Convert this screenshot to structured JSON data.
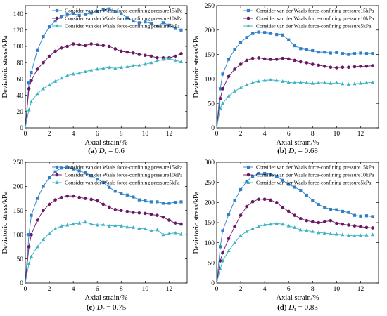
{
  "colors": {
    "p15": "#2f80c8",
    "p10": "#6a1766",
    "p5": "#3ab3c2"
  },
  "chart_data": [
    {
      "type": "line",
      "caption": {
        "letter": "(a)",
        "var": "D",
        "sub": "r",
        "value": " = 0.6"
      },
      "xlabel": "Axial strain/%",
      "ylabel": "Deviatoric stress/kPa",
      "xlim": [
        0,
        13.5
      ],
      "ylim": [
        0,
        150
      ],
      "xticks": [
        0,
        2,
        4,
        6,
        8,
        10,
        12
      ],
      "yticks": [
        0,
        20,
        40,
        60,
        80,
        100,
        120,
        140
      ],
      "legend_position": "top-right",
      "series": [
        {
          "name": "Consider van der Waals force-confining pressure15kPa",
          "marker": "square",
          "color": "#2f80c8",
          "x": [
            0,
            0.3,
            0.5,
            1,
            1.5,
            2,
            2.5,
            3,
            3.5,
            4,
            4.5,
            5,
            5.5,
            6,
            6.5,
            7,
            7.5,
            8,
            8.5,
            9,
            9.5,
            10,
            10.5,
            11,
            11.5,
            12,
            12.5,
            13
          ],
          "y": [
            0,
            55,
            68,
            95,
            112,
            124,
            131,
            137,
            139,
            140,
            138,
            139,
            141,
            143,
            145,
            146,
            143,
            140,
            135,
            131,
            129,
            130,
            128,
            125,
            129,
            126,
            122,
            120
          ]
        },
        {
          "name": "Consider van der Waals force-confining pressure10kPa",
          "marker": "circle",
          "color": "#6a1766",
          "x": [
            0,
            0.3,
            0.5,
            1,
            1.5,
            2,
            2.5,
            3,
            3.5,
            4,
            4.5,
            5,
            5.5,
            6,
            6.5,
            7,
            7.5,
            8,
            8.5,
            9,
            9.5,
            10,
            10.5,
            11,
            11.5,
            12,
            12.5,
            13
          ],
          "y": [
            0,
            48,
            58,
            72,
            80,
            88,
            94,
            98,
            100,
            103,
            102,
            101,
            103,
            102,
            101,
            100,
            97,
            94,
            93,
            92,
            90,
            89,
            88,
            86,
            86,
            86,
            88,
            91
          ]
        },
        {
          "name": "Consider van der Waals force-confining pressure5kPa",
          "marker": "triangle",
          "color": "#3ab3c2",
          "x": [
            0,
            0.3,
            0.5,
            1,
            1.5,
            2,
            2.5,
            3,
            3.5,
            4,
            4.5,
            5,
            5.5,
            6,
            6.5,
            7,
            7.5,
            8,
            8.5,
            9,
            9.5,
            10,
            10.5,
            11,
            11.5,
            12,
            12.5,
            13
          ],
          "y": [
            0,
            22,
            32,
            42,
            48,
            53,
            57,
            61,
            64,
            66,
            67,
            69,
            71,
            72,
            73,
            74,
            73,
            74,
            75,
            76,
            77,
            78,
            80,
            82,
            84,
            85,
            83,
            81
          ]
        }
      ]
    },
    {
      "type": "line",
      "caption": {
        "letter": "(b)",
        "var": "D",
        "sub": "r",
        "value": " = 0.68"
      },
      "xlabel": "Axial strain/%",
      "ylabel": "Deviatoric stress/kPa",
      "xlim": [
        0,
        13.5
      ],
      "ylim": [
        0,
        250
      ],
      "xticks": [
        0,
        2,
        4,
        6,
        8,
        10,
        12
      ],
      "yticks": [
        0,
        50,
        100,
        150,
        200,
        250
      ],
      "legend_position": "top-right",
      "series": [
        {
          "name": "Consider van der Waals force-confining pressure15kPa",
          "marker": "square",
          "color": "#2f80c8",
          "x": [
            0,
            0.3,
            0.5,
            1,
            1.5,
            2,
            2.5,
            3,
            3.5,
            4,
            4.5,
            5,
            5.5,
            6,
            6.5,
            7,
            7.5,
            8,
            8.5,
            9,
            9.5,
            10,
            10.5,
            11,
            11.5,
            12,
            12.5,
            13
          ],
          "y": [
            0,
            80,
            110,
            140,
            160,
            175,
            185,
            193,
            196,
            195,
            193,
            191,
            190,
            180,
            168,
            162,
            160,
            158,
            155,
            155,
            153,
            154,
            152,
            150,
            152,
            153,
            152,
            152
          ]
        },
        {
          "name": "Consider van der Waals force-confining pressure10kPa",
          "marker": "circle",
          "color": "#6a1766",
          "x": [
            0,
            0.3,
            0.5,
            1,
            1.5,
            2,
            2.5,
            3,
            3.5,
            4,
            4.5,
            5,
            5.5,
            6,
            6.5,
            7,
            7.5,
            8,
            8.5,
            9,
            9.5,
            10,
            10.5,
            11,
            11.5,
            12,
            12.5,
            13
          ],
          "y": [
            0,
            60,
            80,
            105,
            120,
            130,
            138,
            142,
            143,
            141,
            140,
            140,
            142,
            141,
            138,
            135,
            133,
            130,
            128,
            126,
            124,
            123,
            124,
            124,
            125,
            126,
            126,
            127
          ]
        },
        {
          "name": "Consider van der Waals force-confining pressure5kPa",
          "marker": "triangle",
          "color": "#3ab3c2",
          "x": [
            0,
            0.3,
            0.5,
            1,
            1.5,
            2,
            2.5,
            3,
            3.5,
            4,
            4.5,
            5,
            5.5,
            6,
            6.5,
            7,
            7.5,
            8,
            8.5,
            9,
            9.5,
            10,
            10.5,
            11,
            11.5,
            12,
            12.5,
            13
          ],
          "y": [
            0,
            40,
            50,
            65,
            75,
            82,
            88,
            92,
            95,
            97,
            98,
            97,
            95,
            93,
            92,
            93,
            92,
            91,
            92,
            92,
            91,
            92,
            90,
            89,
            90,
            91,
            92,
            93
          ]
        }
      ]
    },
    {
      "type": "line",
      "caption": {
        "letter": "(c)",
        "var": "D",
        "sub": "r",
        "value": " = 0.75"
      },
      "xlabel": "Axial strain/%",
      "ylabel": "Deviatoric stress/kPa",
      "xlim": [
        0,
        13.5
      ],
      "ylim": [
        0,
        250
      ],
      "xticks": [
        0,
        2,
        4,
        6,
        8,
        10,
        12
      ],
      "yticks": [
        0,
        50,
        100,
        150,
        200,
        250
      ],
      "legend_position": "top-right",
      "series": [
        {
          "name": "Consider van der Waals force-confining pressure15kPa",
          "marker": "square",
          "color": "#2f80c8",
          "x": [
            0,
            0.3,
            0.5,
            1,
            1.5,
            2,
            2.5,
            3,
            3.5,
            4,
            4.5,
            5,
            5.5,
            6,
            6.5,
            7,
            7.5,
            8,
            8.5,
            9,
            9.5,
            10,
            10.5,
            11,
            11.5,
            12,
            12.5,
            13
          ],
          "y": [
            0,
            100,
            140,
            175,
            200,
            218,
            230,
            238,
            240,
            236,
            232,
            228,
            222,
            215,
            208,
            198,
            190,
            185,
            182,
            178,
            172,
            170,
            168,
            168,
            165,
            165,
            167,
            168
          ]
        },
        {
          "name": "Consider van der Waals force-confining pressure10kPa",
          "marker": "circle",
          "color": "#6a1766",
          "x": [
            0,
            0.3,
            0.5,
            1,
            1.5,
            2,
            2.5,
            3,
            3.5,
            4,
            4.5,
            5,
            5.5,
            6,
            6.5,
            7,
            7.5,
            8,
            8.5,
            9,
            9.5,
            10,
            10.5,
            11,
            11.5,
            12,
            12.5,
            13
          ],
          "y": [
            0,
            75,
            100,
            130,
            150,
            163,
            172,
            177,
            180,
            180,
            177,
            175,
            173,
            170,
            163,
            157,
            152,
            150,
            148,
            146,
            145,
            144,
            142,
            140,
            136,
            130,
            124,
            122
          ]
        },
        {
          "name": "Consider van der Waals force-confining pressure5kPa",
          "marker": "triangle",
          "color": "#3ab3c2",
          "x": [
            0,
            0.3,
            0.5,
            1,
            1.5,
            2,
            2.5,
            3,
            3.5,
            4,
            4.5,
            5,
            5.5,
            6,
            6.5,
            7,
            7.5,
            8,
            8.5,
            9,
            9.5,
            10,
            10.5,
            11,
            11.5,
            12,
            12.5,
            13
          ],
          "y": [
            0,
            40,
            55,
            75,
            90,
            103,
            112,
            118,
            120,
            122,
            124,
            126,
            122,
            120,
            121,
            118,
            119,
            118,
            116,
            115,
            113,
            112,
            108,
            110,
            100,
            102,
            104,
            101
          ]
        }
      ]
    },
    {
      "type": "line",
      "caption": {
        "letter": "(d)",
        "var": "D",
        "sub": "r",
        "value": " = 0.83"
      },
      "xlabel": "Axial strain/%",
      "ylabel": "Deviatoric stress/kPa",
      "xlim": [
        0,
        13.5
      ],
      "ylim": [
        0,
        300
      ],
      "xticks": [
        0,
        2,
        4,
        6,
        8,
        10,
        12
      ],
      "yticks": [
        0,
        50,
        100,
        150,
        200,
        250,
        300
      ],
      "legend_position": "top-right",
      "series": [
        {
          "name": "Consider van der Waals force-confining pressure15kPa",
          "marker": "square",
          "color": "#2f80c8",
          "x": [
            0,
            0.3,
            0.5,
            1,
            1.5,
            2,
            2.5,
            3,
            3.5,
            4,
            4.5,
            5,
            5.5,
            6,
            6.5,
            7,
            7.5,
            8,
            8.5,
            9,
            9.5,
            10,
            10.5,
            11,
            11.5,
            12,
            12.5,
            13
          ],
          "y": [
            0,
            90,
            130,
            170,
            205,
            232,
            252,
            265,
            272,
            272,
            270,
            265,
            255,
            245,
            238,
            230,
            218,
            205,
            195,
            188,
            183,
            182,
            178,
            175,
            168,
            166,
            167,
            165
          ]
        },
        {
          "name": "Consider van der Waals force-confining pressure10kPa",
          "marker": "circle",
          "color": "#6a1766",
          "x": [
            0,
            0.3,
            0.5,
            1,
            1.5,
            2,
            2.5,
            3,
            3.5,
            4,
            4.5,
            5,
            5.5,
            6,
            6.5,
            7,
            7.5,
            8,
            8.5,
            9,
            9.5,
            10,
            10.5,
            11,
            11.5,
            12,
            12.5,
            13
          ],
          "y": [
            0,
            55,
            75,
            110,
            140,
            168,
            190,
            202,
            208,
            208,
            206,
            200,
            188,
            178,
            168,
            160,
            155,
            152,
            150,
            152,
            155,
            148,
            146,
            144,
            142,
            140,
            138,
            137
          ]
        },
        {
          "name": "Consider van der Waals force-confining pressure5kPa",
          "marker": "triangle",
          "color": "#3ab3c2",
          "x": [
            0,
            0.3,
            0.5,
            1,
            1.5,
            2,
            2.5,
            3,
            3.5,
            4,
            4.5,
            5,
            5.5,
            6,
            6.5,
            7,
            7.5,
            8,
            8.5,
            9,
            9.5,
            10,
            10.5,
            11,
            11.5,
            12,
            12.5,
            13
          ],
          "y": [
            0,
            35,
            55,
            80,
            100,
            118,
            128,
            135,
            140,
            145,
            146,
            148,
            146,
            142,
            138,
            132,
            130,
            128,
            125,
            124,
            122,
            121,
            120,
            118,
            117,
            118,
            119,
            120
          ]
        }
      ]
    }
  ]
}
